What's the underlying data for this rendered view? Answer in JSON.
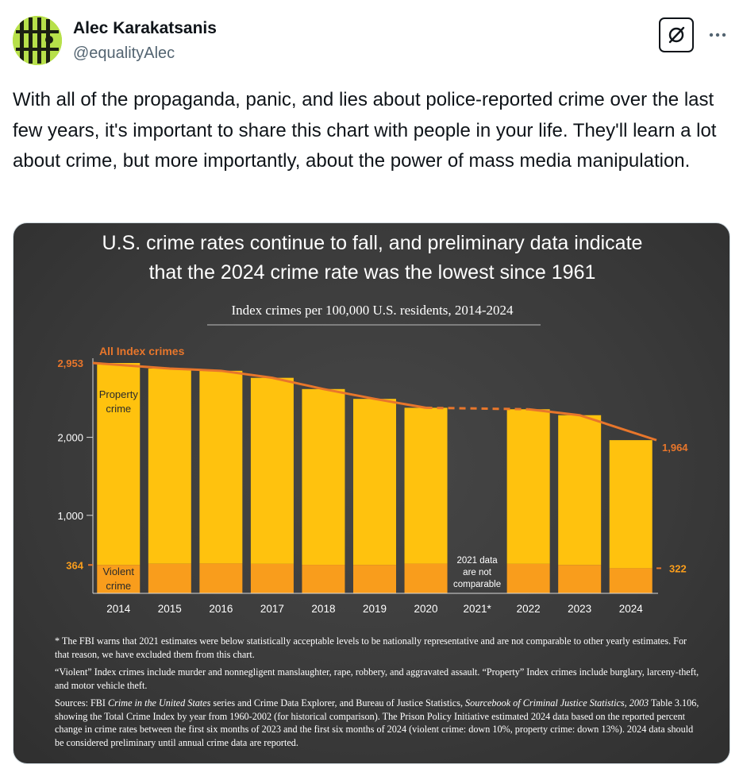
{
  "author": {
    "name": "Alec Karakatsanis",
    "handle": "@equalityAlec",
    "avatar_icon": "prison-bars-avatar-icon"
  },
  "actions": {
    "grok_icon": "grok-icon",
    "more_icon": "more-dots-icon",
    "more_label": "···"
  },
  "tweet": {
    "text": "With all of the propaganda, panic, and lies about police-reported crime over the last few years, it's important to share this chart with people in your life. They'll learn a lot about crime, but more importantly, about the power of mass media manipulation."
  },
  "colors": {
    "property": "#ffc20e",
    "violent": "#f99d1c",
    "line": "#e8762b",
    "background": "#3d3d3d"
  },
  "chart_data": {
    "type": "bar",
    "title_line1": "U.S. crime rates continue to fall, and preliminary data indicate",
    "title_line2": "that the 2024 crime rate was the lowest since 1961",
    "subtitle": "Index crimes per 100,000 U.S. residents, 2014-2024",
    "categories": [
      "2014",
      "2015",
      "2016",
      "2017",
      "2018",
      "2019",
      "2020",
      "2021*",
      "2022",
      "2023",
      "2024"
    ],
    "ylim": [
      0,
      3050
    ],
    "y_ticks": [
      {
        "value": 1000,
        "label": "1,000"
      },
      {
        "value": 2000,
        "label": "2,000"
      }
    ],
    "series": [
      {
        "name": "Violent crime",
        "values": [
          364,
          380,
          383,
          378,
          366,
          365,
          381,
          null,
          378,
          364,
          322
        ]
      },
      {
        "name": "Property crime",
        "values": [
          2589,
          2502,
          2470,
          2385,
          2253,
          2128,
          1998,
          null,
          1982,
          1920,
          1642
        ]
      }
    ],
    "total_series": {
      "name": "All Index crimes",
      "values": [
        2953,
        2882,
        2853,
        2763,
        2619,
        2493,
        2379,
        null,
        2360,
        2284,
        1964
      ],
      "dashed_gap": [
        "2020",
        "2022"
      ]
    },
    "labels": {
      "total_start": "2,953",
      "total_end": "1,964",
      "violent_start": "364",
      "violent_end": "322",
      "property_label_line1": "Property",
      "property_label_line2": "crime",
      "violent_label_line1": "Violent",
      "violent_label_line2": "crime"
    },
    "gap_note": [
      "2021 data",
      "are not",
      "comparable"
    ]
  },
  "footnotes": {
    "note1": "* The FBI warns that 2021 estimates were below statistically acceptable levels to be nationally representative and are not comparable to other yearly estimates. For that reason, we have excluded them from this chart.",
    "note2": "“Violent” Index crimes include murder and nonnegligent manslaughter, rape, robbery, and aggravated assault. “Property” Index crimes include burglary, larceny-theft, and motor vehicle theft.",
    "sources_prefix": "Sources: FBI ",
    "sources_italic1": "Crime in the United States",
    "sources_mid1": " series and Crime Data Explorer, and Bureau of Justice Statistics, ",
    "sources_italic2": "Sourcebook of Criminal Justice Statistics, 2003",
    "sources_rest": " Table 3.106, showing the Total Crime Index by year from 1960-2002 (for historical comparison). The Prison Policy Initiative estimated 2024 data based on the reported percent change in crime rates between the first six months of 2023 and the first six months of 2024 (violent crime: down 10%, property crime: down 13%). 2024 data should be considered preliminary until annual crime data are reported."
  }
}
